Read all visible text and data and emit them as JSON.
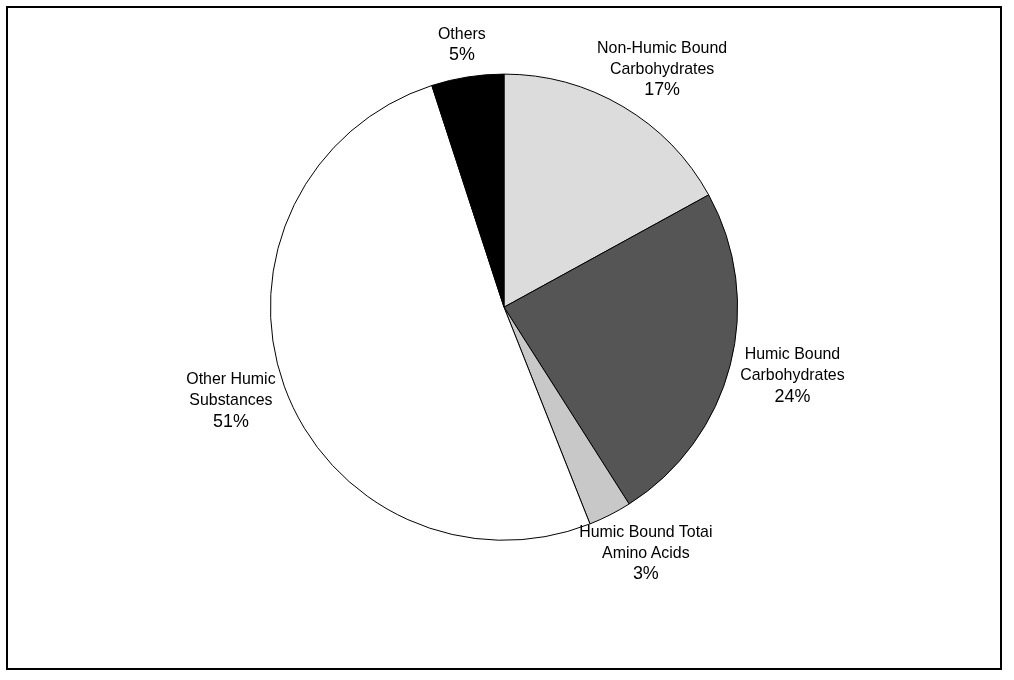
{
  "chart_data": {
    "type": "pie",
    "categories": [
      "Non-Humic Bound Carbohydrates",
      "Humic Bound Carbohydrates",
      "Humic Bound Totai Amino Acids",
      "Other Humic Substances",
      "Others"
    ],
    "values": [
      17,
      24,
      3,
      51,
      5
    ],
    "colors": [
      "#dcdcdc",
      "#555555",
      "#c8c8c8",
      "#ffffff",
      "#000000"
    ],
    "value_labels": [
      "17%",
      "24%",
      "3%",
      "51%",
      "5%"
    ],
    "legend": false
  }
}
